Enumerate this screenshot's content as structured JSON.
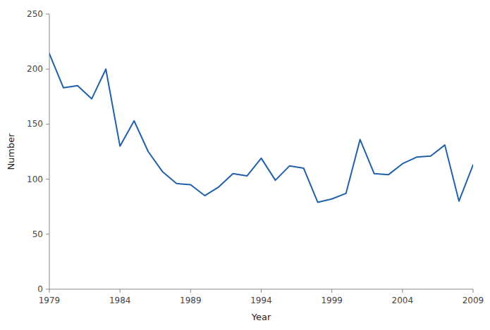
{
  "chart_data": {
    "type": "line",
    "x": [
      1979,
      1980,
      1981,
      1982,
      1983,
      1984,
      1985,
      1986,
      1987,
      1988,
      1989,
      1990,
      1991,
      1992,
      1993,
      1994,
      1995,
      1996,
      1997,
      1998,
      1999,
      2000,
      2001,
      2002,
      2003,
      2004,
      2005,
      2006,
      2007,
      2008,
      2009
    ],
    "values": [
      214,
      183,
      185,
      173,
      200,
      130,
      153,
      125,
      107,
      96,
      95,
      85,
      93,
      105,
      103,
      119,
      99,
      112,
      110,
      79,
      82,
      87,
      136,
      105,
      104,
      114,
      120,
      121,
      131,
      80,
      113
    ],
    "color": "#2060a8",
    "xlabel": "Year",
    "ylabel": "Number",
    "xlim": [
      1979,
      2009
    ],
    "ylim": [
      0,
      250
    ],
    "xticks": [
      1979,
      1984,
      1989,
      1994,
      1999,
      2004,
      2009
    ],
    "yticks": [
      0,
      50,
      100,
      150,
      200,
      250
    ],
    "grid": false
  }
}
